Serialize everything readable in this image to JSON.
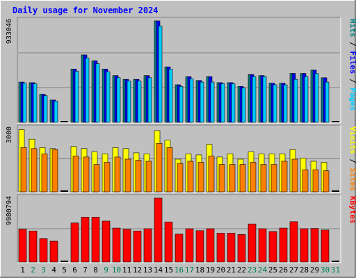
{
  "chart_data": {
    "type": "bar",
    "title": "Daily usage for November 2024",
    "categories": [
      "1",
      "2",
      "3",
      "4",
      "5",
      "6",
      "7",
      "8",
      "9",
      "10",
      "11",
      "12",
      "13",
      "14",
      "15",
      "16",
      "17",
      "18",
      "19",
      "20",
      "21",
      "22",
      "23",
      "24",
      "25",
      "26",
      "27",
      "28",
      "29",
      "30",
      "31"
    ],
    "weekend_days": [
      "2",
      "3",
      "9",
      "10",
      "16",
      "17",
      "23",
      "24",
      "30",
      "31"
    ],
    "panels": [
      {
        "name": "requests",
        "ymax": 933046,
        "ymax_label": "933046",
        "series": [
          {
            "name": "Hits",
            "color": "#008080",
            "values": [
              370000,
              365000,
              258000,
              205000,
              0,
              490000,
              620000,
              565000,
              490000,
              430000,
              395000,
              395000,
              430000,
              933046,
              510000,
              345000,
              420000,
              385000,
              420000,
              365000,
              365000,
              330000,
              440000,
              430000,
              360000,
              360000,
              450000,
              450000,
              480000,
              410000,
              0
            ]
          },
          {
            "name": "Files",
            "color": "#0000ff",
            "values": [
              370000,
              365000,
              258000,
              205000,
              0,
              490000,
              620000,
              565000,
              490000,
              430000,
              395000,
              395000,
              430000,
              933046,
              510000,
              345000,
              420000,
              385000,
              420000,
              365000,
              365000,
              330000,
              440000,
              430000,
              360000,
              360000,
              450000,
              450000,
              480000,
              410000,
              0
            ]
          },
          {
            "name": "Pages",
            "color": "#00ccff",
            "values": [
              360000,
              355000,
              245000,
              195000,
              0,
              470000,
              590000,
              540000,
              465000,
              410000,
              380000,
              380000,
              410000,
              885000,
              490000,
              330000,
              400000,
              370000,
              370000,
              355000,
              355000,
              315000,
              420000,
              420000,
              345000,
              345000,
              395000,
              420000,
              450000,
              370000,
              0
            ]
          }
        ]
      },
      {
        "name": "visits",
        "ymax": 3000,
        "ymax_label": "3000",
        "series": [
          {
            "name": "Visits",
            "color": "#ffff00",
            "values": [
              2950,
              2500,
              2100,
              2050,
              0,
              2150,
              2050,
              1900,
              1800,
              2100,
              2050,
              1850,
              1800,
              2900,
              2450,
              1550,
              1800,
              1750,
              2250,
              1650,
              1800,
              1550,
              1900,
              1800,
              1800,
              1800,
              2000,
              1600,
              1450,
              1400,
              0
            ]
          },
          {
            "name": "Sites",
            "color": "#ff8000",
            "values": [
              2100,
              2050,
              1800,
              2000,
              0,
              1700,
              1650,
              1300,
              1400,
              1650,
              1550,
              1500,
              1450,
              2300,
              2100,
              1350,
              1450,
              1400,
              1700,
              1300,
              1300,
              1300,
              1400,
              1300,
              1300,
              1450,
              1550,
              1050,
              1050,
              1000,
              0
            ]
          }
        ]
      },
      {
        "name": "kbytes",
        "ymax": 9980794,
        "ymax_label": "9980794",
        "series": [
          {
            "name": "KBytes",
            "color": "#ff0000",
            "values": [
              5100000,
              4850000,
              3650000,
              3250000,
              0,
              6100000,
              7000000,
              7000000,
              6400000,
              5300000,
              5100000,
              4850000,
              5200000,
              9980794,
              6250000,
              4350000,
              5200000,
              4900000,
              5200000,
              4500000,
              4500000,
              4300000,
              5950000,
              5200000,
              4750000,
              5300000,
              6300000,
              5200000,
              5250000,
              5000000,
              0
            ]
          }
        ]
      }
    ],
    "right_labels": [
      {
        "parts": [
          {
            "text": "Pages",
            "color": "#00ccff"
          },
          {
            "text": " / ",
            "color": "#000000"
          },
          {
            "text": "Files",
            "color": "#0000ff"
          },
          {
            "text": " / ",
            "color": "#000000"
          },
          {
            "text": "Hits",
            "color": "#008080"
          }
        ]
      },
      {
        "parts": [
          {
            "text": "Sites",
            "color": "#ff8000"
          },
          {
            "text": " / ",
            "color": "#000000"
          },
          {
            "text": "Visits",
            "color": "#ffff00"
          }
        ]
      },
      {
        "parts": [
          {
            "text": "KBytes",
            "color": "#ff0000"
          }
        ]
      }
    ],
    "colors": {
      "background": "#c0c0c0",
      "plot_background": "#c0c0c0",
      "title": "#0000ff",
      "weekday_label": "#000000",
      "weekend_label": "#00805c",
      "grid": "#808080"
    },
    "grid": true,
    "legend": "right"
  }
}
